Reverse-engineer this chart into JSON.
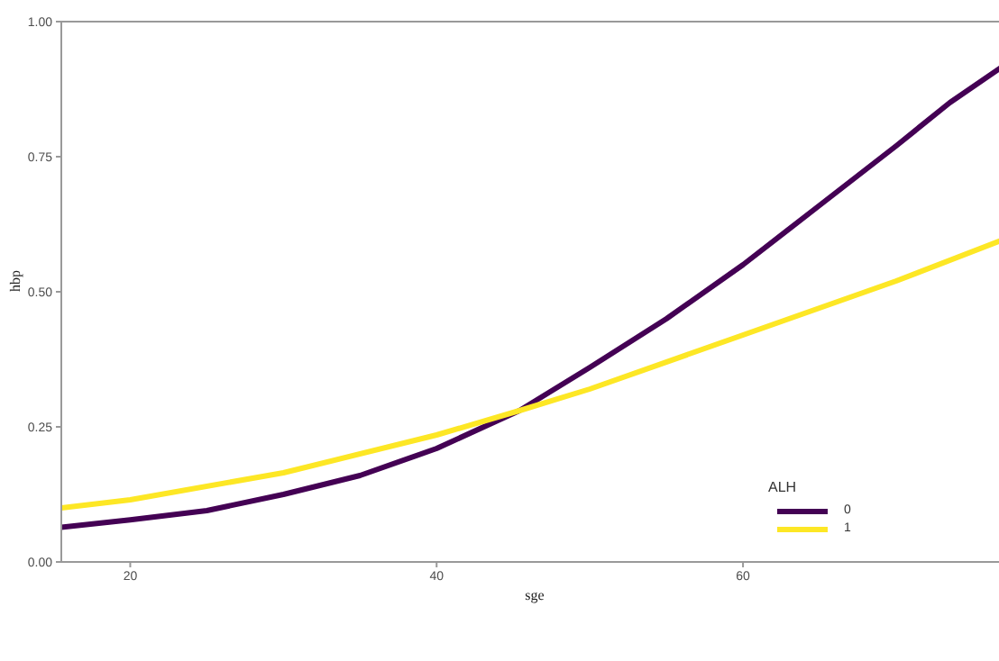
{
  "chart_data": {
    "type": "line",
    "xlabel": "sge",
    "ylabel": "hbp",
    "legend_title": "ALH",
    "legend": "bottom right",
    "marker": "none",
    "line_style": "solid",
    "xlim": [
      15.5,
      77.3
    ],
    "xticks": [
      20,
      40,
      60
    ],
    "ylim": [
      0,
      1
    ],
    "yticks": [
      {
        "value": 0,
        "label": "0.00"
      },
      {
        "value": 0.25,
        "label": "0.25"
      },
      {
        "value": 0.5,
        "label": "0.50"
      },
      {
        "value": 0.75,
        "label": "0.75"
      },
      {
        "value": 1,
        "label": "1.00"
      }
    ],
    "series": [
      {
        "name": "0",
        "color": "#440154",
        "x": [
          15.5,
          20,
          25,
          30,
          35,
          40,
          45.4,
          50,
          55,
          60,
          65,
          70,
          73.5,
          77.3
        ],
        "values": [
          0.064,
          0.078,
          0.095,
          0.125,
          0.16,
          0.21,
          0.28,
          0.36,
          0.45,
          0.55,
          0.66,
          0.77,
          0.85,
          0.924
        ]
      },
      {
        "name": "1",
        "color": "#fde725",
        "x": [
          15.5,
          20,
          30,
          40,
          45.4,
          50,
          60,
          70,
          77.3
        ],
        "values": [
          0.1,
          0.115,
          0.165,
          0.235,
          0.28,
          0.32,
          0.42,
          0.52,
          0.6
        ]
      }
    ]
  }
}
